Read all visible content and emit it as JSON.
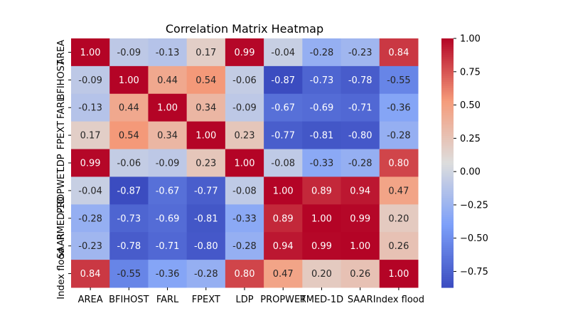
{
  "chart_data": {
    "type": "heatmap",
    "title": "Correlation Matrix Heatmap",
    "xlabel": "",
    "ylabel": "",
    "x_categories": [
      "AREA",
      "BFIHOST",
      "FARL",
      "FPEXT",
      "LDP",
      "PROPWET",
      "RMED-1D",
      "SAAR",
      "Index flood"
    ],
    "y_categories": [
      "AREA",
      "BFIHOST",
      "FARL",
      "FPEXT",
      "LDP",
      "PROPWET",
      "RMED-1D",
      "SAAR",
      "Index flood"
    ],
    "values": [
      [
        1.0,
        -0.09,
        -0.13,
        0.17,
        0.99,
        -0.04,
        -0.28,
        -0.23,
        0.84
      ],
      [
        -0.09,
        1.0,
        0.44,
        0.54,
        -0.06,
        -0.87,
        -0.73,
        -0.78,
        -0.55
      ],
      [
        -0.13,
        0.44,
        1.0,
        0.34,
        -0.09,
        -0.67,
        -0.69,
        -0.71,
        -0.36
      ],
      [
        0.17,
        0.54,
        0.34,
        1.0,
        0.23,
        -0.77,
        -0.81,
        -0.8,
        -0.28
      ],
      [
        0.99,
        -0.06,
        -0.09,
        0.23,
        1.0,
        -0.08,
        -0.33,
        -0.28,
        0.8
      ],
      [
        -0.04,
        -0.87,
        -0.67,
        -0.77,
        -0.08,
        1.0,
        0.89,
        0.94,
        0.47
      ],
      [
        -0.28,
        -0.73,
        -0.69,
        -0.81,
        -0.33,
        0.89,
        1.0,
        0.99,
        0.2
      ],
      [
        -0.23,
        -0.78,
        -0.71,
        -0.8,
        -0.28,
        0.94,
        0.99,
        1.0,
        0.26
      ],
      [
        0.84,
        -0.55,
        -0.36,
        -0.28,
        0.8,
        0.47,
        0.2,
        0.26,
        1.0
      ]
    ],
    "value_format": "0.00",
    "colormap": "coolwarm",
    "color_range": [
      -0.87,
      1.0
    ],
    "colorbar_ticks": [
      1.0,
      0.75,
      0.5,
      0.25,
      0.0,
      -0.25,
      -0.5,
      -0.75
    ],
    "colorbar_tick_labels": [
      "1.00",
      "0.75",
      "0.50",
      "0.25",
      "0.00",
      "−0.25",
      "−0.50",
      "−0.75"
    ],
    "annotated": true,
    "grid": false
  }
}
